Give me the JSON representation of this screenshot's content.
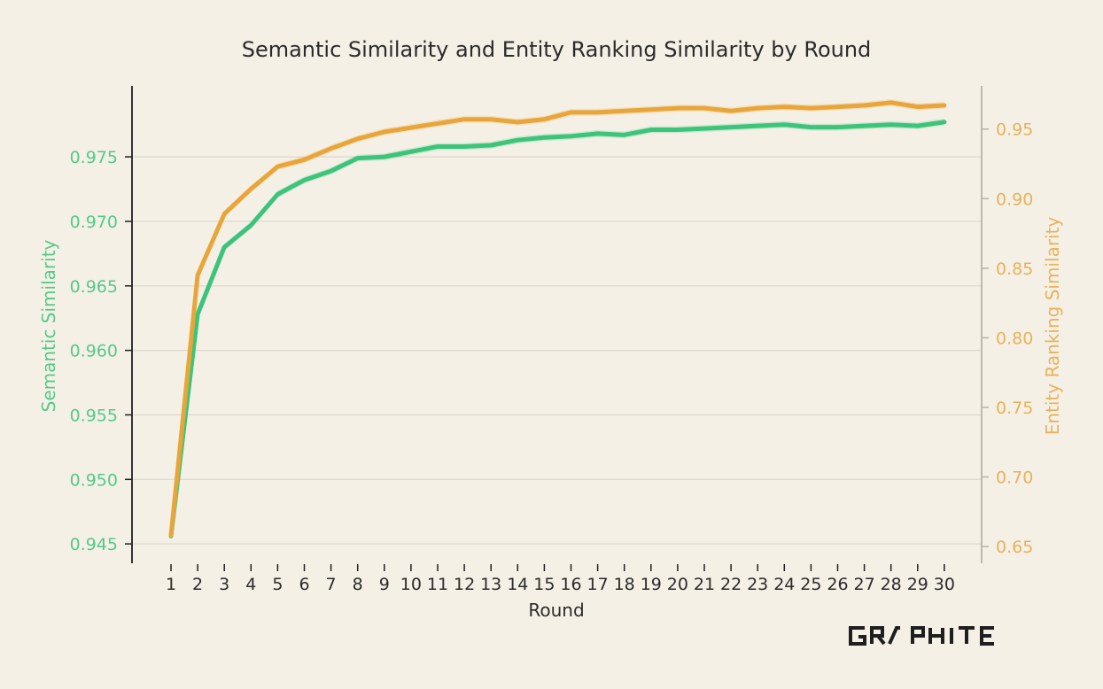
{
  "chart_data": {
    "type": "line",
    "title": "Semantic Similarity and Entity Ranking Similarity by Round",
    "xlabel": "Round",
    "x": [
      1,
      2,
      3,
      4,
      5,
      6,
      7,
      8,
      9,
      10,
      11,
      12,
      13,
      14,
      15,
      16,
      17,
      18,
      19,
      20,
      21,
      22,
      23,
      24,
      25,
      26,
      27,
      28,
      29,
      30
    ],
    "y_left": {
      "label": "Semantic Similarity",
      "color": "#3cc47a",
      "lim": [
        0.9435,
        0.9805
      ],
      "ticks": [
        "0.945",
        "0.950",
        "0.955",
        "0.960",
        "0.965",
        "0.970",
        "0.975"
      ]
    },
    "y_right": {
      "label": "Entity Ranking Similarity",
      "color": "#e8a63a",
      "lim": [
        0.638,
        0.981
      ],
      "ticks": [
        "0.65",
        "0.70",
        "0.75",
        "0.80",
        "0.85",
        "0.90",
        "0.95"
      ]
    },
    "grid": true,
    "series": [
      {
        "axis": "left",
        "color": "#3cc47a",
        "values": [
          0.9456,
          0.9628,
          0.968,
          0.9697,
          0.9721,
          0.9732,
          0.9739,
          0.9749,
          0.975,
          0.9754,
          0.9758,
          0.9758,
          0.9759,
          0.9763,
          0.9765,
          0.9766,
          0.9768,
          0.9767,
          0.9771,
          0.9771,
          0.9772,
          0.9773,
          0.9774,
          0.9775,
          0.9773,
          0.9773,
          0.9774,
          0.9775,
          0.9774,
          0.9777
        ]
      },
      {
        "axis": "right",
        "color": "#e8a63a",
        "values": [
          0.658,
          0.845,
          0.889,
          0.907,
          0.923,
          0.928,
          0.936,
          0.943,
          0.948,
          0.951,
          0.954,
          0.957,
          0.957,
          0.955,
          0.957,
          0.962,
          0.962,
          0.963,
          0.964,
          0.965,
          0.965,
          0.963,
          0.965,
          0.966,
          0.965,
          0.966,
          0.967,
          0.969,
          0.966,
          0.967
        ]
      }
    ]
  },
  "logo": {
    "text": "GRAPHITE"
  }
}
